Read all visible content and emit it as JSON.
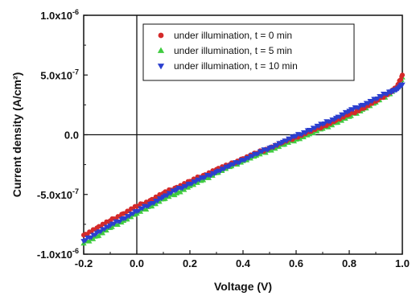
{
  "chart_data": {
    "type": "scatter",
    "xlabel": "Voltage (V)",
    "ylabel": "Current density (A/cm²)",
    "xlim": [
      -0.2,
      1.0
    ],
    "ylim": [
      -1e-06,
      1e-06
    ],
    "x_ticks": [
      {
        "value": -0.2,
        "label": "-0.2"
      },
      {
        "value": 0.0,
        "label": "0.0"
      },
      {
        "value": 0.2,
        "label": "0.2"
      },
      {
        "value": 0.4,
        "label": "0.4"
      },
      {
        "value": 0.6,
        "label": "0.6"
      },
      {
        "value": 0.8,
        "label": "0.8"
      },
      {
        "value": 1.0,
        "label": "1.0"
      }
    ],
    "y_ticks": [
      {
        "value": 1e-06,
        "label": "1.0x10",
        "exp": "-6"
      },
      {
        "value": 5e-07,
        "label": "5.0x10",
        "exp": "-7"
      },
      {
        "value": 0.0,
        "label": "0.0",
        "exp": ""
      },
      {
        "value": -5e-07,
        "label": "-5.0x10",
        "exp": "-7"
      },
      {
        "value": -1e-06,
        "label": "-1.0x10",
        "exp": "-6"
      }
    ],
    "reference_lines": {
      "x": 0.0,
      "y": 0.0
    },
    "legend_position": "top-right",
    "grid": false,
    "series": [
      {
        "name": "under illumination, t = 0 min",
        "marker": "circle",
        "color": "#d42a2a",
        "x": [
          -0.2,
          -0.15,
          -0.1,
          -0.05,
          0.0,
          0.05,
          0.1,
          0.15,
          0.2,
          0.25,
          0.3,
          0.35,
          0.4,
          0.45,
          0.5,
          0.55,
          0.6,
          0.65,
          0.7,
          0.75,
          0.8,
          0.85,
          0.9,
          0.95,
          0.98,
          1.0
        ],
        "y": [
          -8.4e-07,
          -7.8e-07,
          -7.2e-07,
          -6.6e-07,
          -6e-07,
          -5.5e-07,
          -4.9e-07,
          -4.4e-07,
          -3.9e-07,
          -3.4e-07,
          -2.9e-07,
          -2.5e-07,
          -2e-07,
          -1.55e-07,
          -1.1e-07,
          -6.5e-08,
          -2e-08,
          2.5e-08,
          7e-08,
          1.2e-07,
          1.7e-07,
          2.2e-07,
          2.8e-07,
          3.5e-07,
          4e-07,
          5e-07
        ]
      },
      {
        "name": "under illumination, t = 5 min",
        "marker": "triangle-up",
        "color": "#3fcc3f",
        "x": [
          -0.2,
          -0.15,
          -0.1,
          -0.05,
          0.0,
          0.05,
          0.1,
          0.15,
          0.2,
          0.25,
          0.3,
          0.35,
          0.4,
          0.45,
          0.5,
          0.55,
          0.6,
          0.65,
          0.7,
          0.75,
          0.8,
          0.85,
          0.9,
          0.95,
          0.98,
          1.0
        ],
        "y": [
          -9.1e-07,
          -8.5e-07,
          -7.8e-07,
          -7.2e-07,
          -6.6e-07,
          -6e-07,
          -5.4e-07,
          -4.9e-07,
          -4.3e-07,
          -3.8e-07,
          -3.2e-07,
          -2.7e-07,
          -2.2e-07,
          -1.75e-07,
          -1.3e-07,
          -8.5e-08,
          -4e-08,
          5e-09,
          5e-08,
          1e-07,
          1.5e-07,
          2.1e-07,
          2.7e-07,
          3.4e-07,
          4e-07,
          4.8e-07
        ]
      },
      {
        "name": "under illumination, t = 10 min",
        "marker": "triangle-down",
        "color": "#2b3fcf",
        "x": [
          -0.2,
          -0.15,
          -0.1,
          -0.05,
          0.0,
          0.05,
          0.1,
          0.15,
          0.2,
          0.25,
          0.3,
          0.35,
          0.4,
          0.45,
          0.5,
          0.55,
          0.6,
          0.65,
          0.7,
          0.75,
          0.8,
          0.85,
          0.9,
          0.95,
          0.98,
          1.0
        ],
        "y": [
          -8.9e-07,
          -8.2e-07,
          -7.6e-07,
          -7e-07,
          -6.4e-07,
          -5.8e-07,
          -5.2e-07,
          -4.6e-07,
          -4.1e-07,
          -3.6e-07,
          -3.1e-07,
          -2.6e-07,
          -2.1e-07,
          -1.6e-07,
          -1.1e-07,
          -6e-08,
          -1e-08,
          4e-08,
          9e-08,
          1.4e-07,
          2e-07,
          2.5e-07,
          3e-07,
          3.6e-07,
          3.8e-07,
          4.2e-07
        ]
      }
    ]
  }
}
